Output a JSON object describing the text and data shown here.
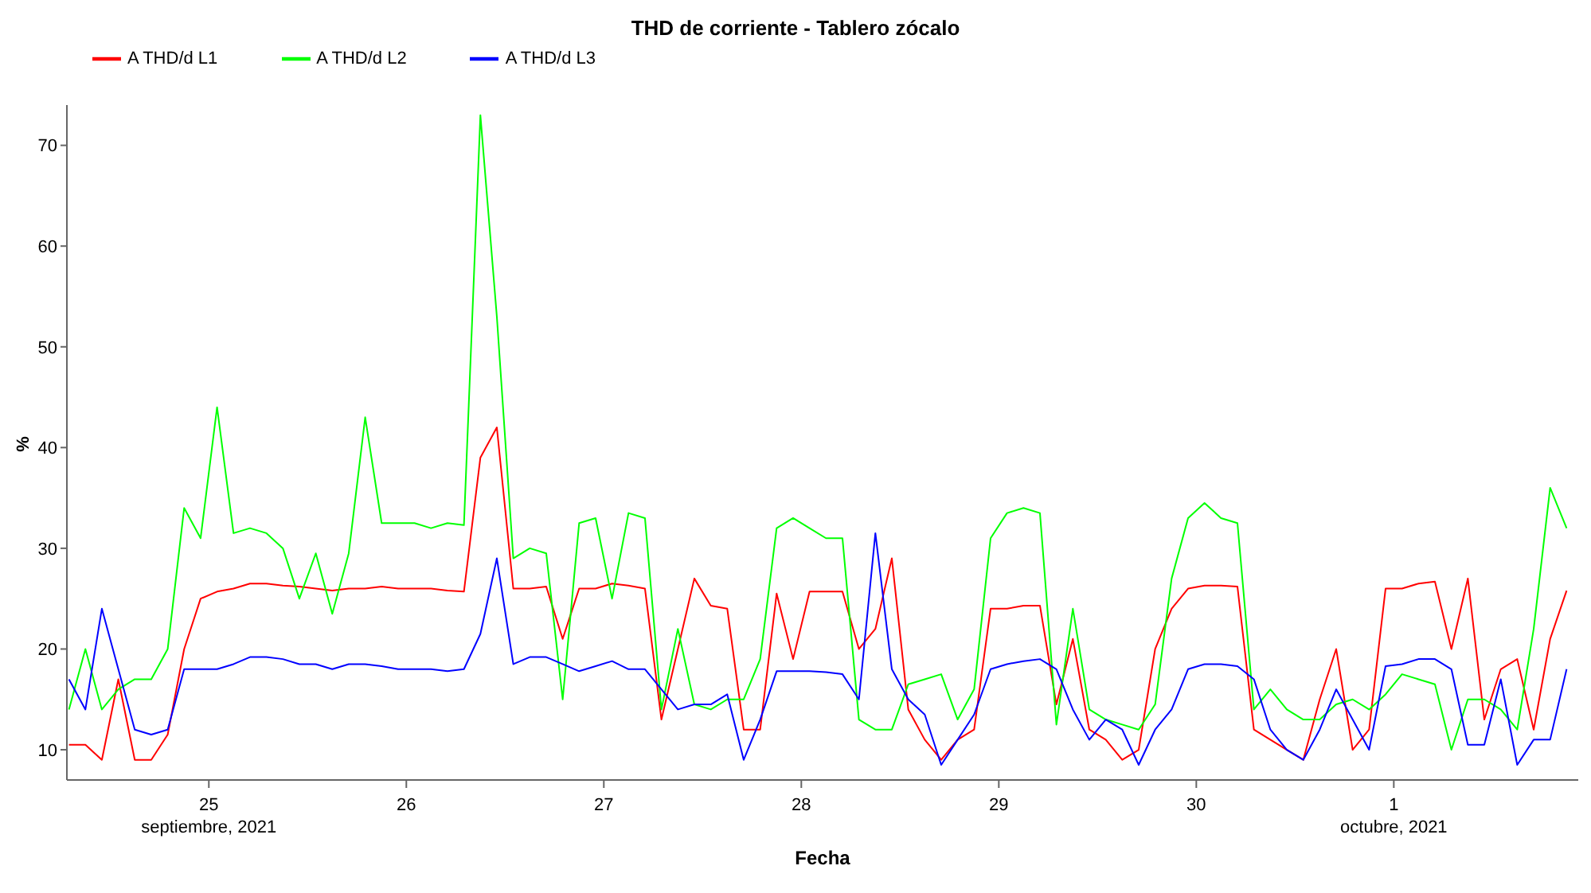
{
  "chart_data": {
    "type": "line",
    "title": "THD de corriente - Tablero zócalo",
    "xlabel": "Fecha",
    "ylabel": "%",
    "x": [
      "2021-09-24T07:00",
      "2021-09-24T09:00",
      "2021-09-24T11:00",
      "2021-09-24T13:00",
      "2021-09-24T15:00",
      "2021-09-24T17:00",
      "2021-09-24T19:00",
      "2021-09-24T21:00",
      "2021-09-24T23:00",
      "2021-09-25T01:00",
      "2021-09-25T03:00",
      "2021-09-25T05:00",
      "2021-09-25T07:00",
      "2021-09-25T09:00",
      "2021-09-25T11:00",
      "2021-09-25T13:00",
      "2021-09-25T15:00",
      "2021-09-25T17:00",
      "2021-09-25T19:00",
      "2021-09-25T21:00",
      "2021-09-25T23:00",
      "2021-09-26T01:00",
      "2021-09-26T03:00",
      "2021-09-26T05:00",
      "2021-09-26T07:00",
      "2021-09-26T09:00",
      "2021-09-26T11:00",
      "2021-09-26T13:00",
      "2021-09-26T15:00",
      "2021-09-26T17:00",
      "2021-09-26T19:00",
      "2021-09-26T21:00",
      "2021-09-26T23:00",
      "2021-09-27T01:00",
      "2021-09-27T03:00",
      "2021-09-27T05:00",
      "2021-09-27T07:00",
      "2021-09-27T09:00",
      "2021-09-27T11:00",
      "2021-09-27T13:00",
      "2021-09-27T15:00",
      "2021-09-27T17:00",
      "2021-09-27T19:00",
      "2021-09-27T21:00",
      "2021-09-27T23:00",
      "2021-09-28T01:00",
      "2021-09-28T03:00",
      "2021-09-28T05:00",
      "2021-09-28T07:00",
      "2021-09-28T09:00",
      "2021-09-28T11:00",
      "2021-09-28T13:00",
      "2021-09-28T15:00",
      "2021-09-28T17:00",
      "2021-09-28T19:00",
      "2021-09-28T21:00",
      "2021-09-28T23:00",
      "2021-09-29T01:00",
      "2021-09-29T03:00",
      "2021-09-29T05:00",
      "2021-09-29T07:00",
      "2021-09-29T09:00",
      "2021-09-29T11:00",
      "2021-09-29T13:00",
      "2021-09-29T15:00",
      "2021-09-29T17:00",
      "2021-09-29T19:00",
      "2021-09-29T21:00",
      "2021-09-29T23:00",
      "2021-09-30T01:00",
      "2021-09-30T03:00",
      "2021-09-30T05:00",
      "2021-09-30T07:00",
      "2021-09-30T09:00",
      "2021-09-30T11:00",
      "2021-09-30T13:00",
      "2021-09-30T15:00",
      "2021-09-30T17:00",
      "2021-09-30T19:00",
      "2021-09-30T21:00",
      "2021-09-30T23:00",
      "2021-10-01T01:00",
      "2021-10-01T03:00",
      "2021-10-01T05:00",
      "2021-10-01T07:00",
      "2021-10-01T09:00",
      "2021-10-01T11:00",
      "2021-10-01T13:00",
      "2021-10-01T15:00",
      "2021-10-01T17:00",
      "2021-10-01T19:00",
      "2021-10-01T21:00"
    ],
    "series": [
      {
        "name": "A THD/d L1",
        "color": "#ff0000",
        "values": [
          10.5,
          10.5,
          9,
          17,
          9,
          9,
          11.5,
          20,
          25,
          25.7,
          26,
          26.5,
          26.5,
          26.3,
          26.2,
          26,
          25.8,
          26,
          26,
          26.2,
          26,
          26,
          26,
          25.8,
          25.7,
          39,
          42,
          26,
          26,
          26.2,
          21,
          26,
          26,
          26.5,
          26.3,
          26,
          13,
          20,
          27,
          24.3,
          24,
          12,
          12,
          25.5,
          19,
          25.7,
          25.7,
          25.7,
          20,
          22,
          29,
          14,
          11,
          9,
          11,
          12,
          24,
          24,
          24.3,
          24.3,
          14.5,
          21,
          12,
          11,
          9,
          10,
          20,
          24,
          26,
          26.3,
          26.3,
          26.2,
          12,
          11,
          10,
          9,
          15,
          20,
          10,
          12,
          26,
          26,
          26.5,
          26.7,
          20,
          27,
          13,
          18,
          19,
          12,
          21,
          25.8
        ]
      },
      {
        "name": "A THD/d L2",
        "color": "#00ff00",
        "values": [
          14,
          20,
          14,
          16,
          17,
          17,
          20,
          34,
          31,
          44,
          31.5,
          32,
          31.5,
          30,
          25,
          29.5,
          23.5,
          29.5,
          43,
          32.5,
          32.5,
          32.5,
          32,
          32.5,
          32.3,
          73,
          53,
          29,
          30,
          29.5,
          15,
          32.5,
          33,
          25,
          33.5,
          33,
          14,
          22,
          14.5,
          14,
          15,
          15,
          19,
          32,
          33,
          32,
          31,
          31,
          13,
          12,
          12,
          16.5,
          17,
          17.5,
          13,
          16,
          31,
          33.5,
          34,
          33.5,
          12.5,
          24,
          14,
          13,
          12.5,
          12,
          14.5,
          27,
          33,
          34.5,
          33,
          32.5,
          14,
          16,
          14,
          13,
          13,
          14.5,
          15,
          14,
          15.5,
          17.5,
          17,
          16.5,
          10,
          15,
          15,
          14,
          12,
          22,
          36,
          32
        ]
      },
      {
        "name": "A THD/d L3",
        "color": "#0000ff",
        "values": [
          17,
          14,
          24,
          18,
          12,
          11.5,
          12,
          18,
          18,
          18,
          18.5,
          19.2,
          19.2,
          19,
          18.5,
          18.5,
          18,
          18.5,
          18.5,
          18.3,
          18,
          18,
          18,
          17.8,
          18,
          21.5,
          29,
          18.5,
          19.2,
          19.2,
          18.5,
          17.8,
          18.3,
          18.8,
          18,
          18,
          16,
          14,
          14.5,
          14.5,
          15.5,
          9,
          13,
          17.8,
          17.8,
          17.8,
          17.7,
          17.5,
          15,
          31.5,
          18,
          15,
          13.5,
          8.5,
          11,
          13.5,
          18,
          18.5,
          18.8,
          19,
          18,
          14,
          11,
          13,
          12,
          8.5,
          12,
          14,
          18,
          18.5,
          18.5,
          18.3,
          17,
          12,
          10,
          9,
          12,
          16,
          13,
          10,
          18.3,
          18.5,
          19,
          19,
          18,
          10.5,
          10.5,
          17,
          8.5,
          11,
          11,
          18
        ]
      }
    ],
    "xlim": [
      "2021-09-24T06:45",
      "2021-10-01T22:25"
    ],
    "xticks": [
      {
        "value": "2021-09-25",
        "label": "25\nseptiembre, 2021"
      },
      {
        "value": "2021-09-26",
        "label": "26"
      },
      {
        "value": "2021-09-27",
        "label": "27"
      },
      {
        "value": "2021-09-28",
        "label": "28"
      },
      {
        "value": "2021-09-29",
        "label": "29"
      },
      {
        "value": "2021-09-30",
        "label": "30"
      },
      {
        "value": "2021-10-01",
        "label": "1\noctubre, 2021"
      }
    ],
    "ylim": [
      7,
      74
    ],
    "yticks": [
      10,
      20,
      30,
      40,
      50,
      60,
      70
    ],
    "grid": false,
    "legend": "top left",
    "marker": "none",
    "line_style": "solid"
  }
}
